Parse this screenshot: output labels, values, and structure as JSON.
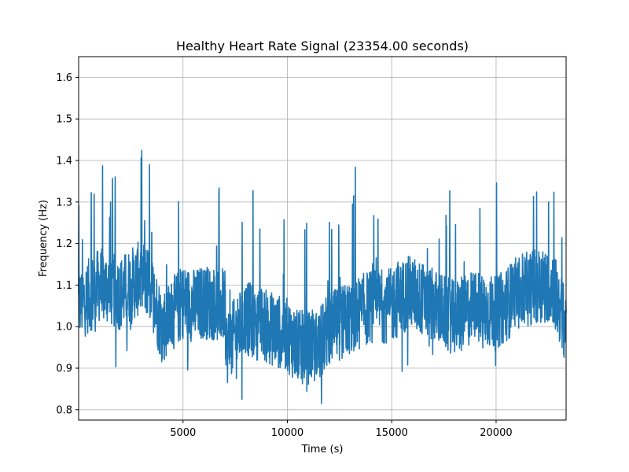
{
  "chart_data": {
    "type": "line",
    "title": "Healthy Heart Rate Signal (23354.00 seconds)",
    "xlabel": "Time (s)",
    "ylabel": "Frequency (Hz)",
    "xlim": [
      0,
      23354
    ],
    "ylim": [
      0.775,
      1.65
    ],
    "xticks": [
      5000,
      10000,
      15000,
      20000
    ],
    "yticks": [
      0.8,
      0.9,
      1.0,
      1.1,
      1.2,
      1.3,
      1.4,
      1.5,
      1.6
    ],
    "grid": true,
    "series": [
      {
        "color": "#1f77b4",
        "x": [
          0,
          1000,
          2000,
          3000,
          3400,
          4000,
          5000,
          5600,
          6000,
          7000,
          7100,
          8000,
          9000,
          10000,
          10500,
          11000,
          11500,
          12000,
          12300,
          13000,
          14000,
          15000,
          15700,
          16000,
          17000,
          18000,
          19000,
          20000,
          21000,
          22000,
          22700,
          23354
        ],
        "y": [
          1.05,
          1.1,
          1.08,
          1.12,
          1.1,
          1.0,
          1.06,
          1.05,
          1.06,
          1.05,
          0.95,
          1.02,
          1.0,
          0.98,
          0.95,
          0.95,
          0.95,
          1.0,
          1.0,
          1.02,
          1.05,
          1.05,
          1.08,
          1.08,
          1.05,
          1.02,
          1.05,
          1.03,
          1.08,
          1.1,
          1.1,
          1.0
        ]
      }
    ]
  }
}
